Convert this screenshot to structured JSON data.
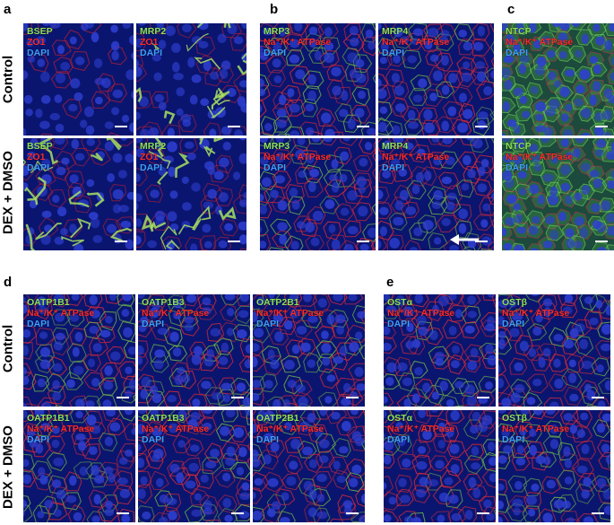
{
  "panels": {
    "a": "a",
    "b": "b",
    "c": "c",
    "d": "d",
    "e": "e"
  },
  "rows": {
    "control": "Control",
    "dex": "DEX + DMSO"
  },
  "tiles": [
    {
      "id": "a1",
      "lines": [
        {
          "t": "BSEP",
          "c": "g"
        },
        {
          "t": "ZO1",
          "c": "r"
        },
        {
          "t": "DAPI",
          "c": "b"
        }
      ],
      "style": "sparse"
    },
    {
      "id": "a2",
      "lines": [
        {
          "t": "MRP2",
          "c": "g"
        },
        {
          "t": "ZO1",
          "c": "r"
        },
        {
          "t": "DAPI",
          "c": "b"
        }
      ],
      "style": "canal"
    },
    {
      "id": "a3",
      "lines": [
        {
          "t": "BSEP",
          "c": "g"
        },
        {
          "t": "ZO1",
          "c": "r"
        },
        {
          "t": "DAPI",
          "c": "b"
        }
      ],
      "style": "canal"
    },
    {
      "id": "a4",
      "lines": [
        {
          "t": "MRP2",
          "c": "g"
        },
        {
          "t": "ZO1",
          "c": "r"
        },
        {
          "t": "DAPI",
          "c": "b"
        }
      ],
      "style": "canal"
    },
    {
      "id": "b1",
      "lines": [
        {
          "t": "MRP3",
          "c": "g"
        },
        {
          "t": "Na⁺/K⁺ ATPase",
          "c": "r"
        },
        {
          "t": "DAPI",
          "c": "b"
        }
      ],
      "style": "membrane"
    },
    {
      "id": "b2",
      "lines": [
        {
          "t": "MRP4",
          "c": "g"
        },
        {
          "t": "Na⁺/K⁺ ATPase",
          "c": "r"
        },
        {
          "t": "DAPI",
          "c": "b"
        }
      ],
      "style": "membrane"
    },
    {
      "id": "b3",
      "lines": [
        {
          "t": "MRP3",
          "c": "g"
        },
        {
          "t": "Na⁺/K⁺ ATPase",
          "c": "r"
        },
        {
          "t": "DAPI",
          "c": "b"
        }
      ],
      "style": "membrane"
    },
    {
      "id": "b4",
      "lines": [
        {
          "t": "MRP4",
          "c": "g"
        },
        {
          "t": "Na⁺/K⁺ ATPase",
          "c": "r"
        },
        {
          "t": "DAPI",
          "c": "b"
        }
      ],
      "style": "membrane"
    },
    {
      "id": "c1",
      "lines": [
        {
          "t": "NTCP",
          "c": "g"
        },
        {
          "t": "Na⁺/K⁺ ATPase",
          "c": "r"
        },
        {
          "t": "DAPI",
          "c": "b"
        }
      ],
      "style": "green"
    },
    {
      "id": "c2",
      "lines": [
        {
          "t": "NTCP",
          "c": "g"
        },
        {
          "t": "Na⁺/K⁺ ATPase",
          "c": "r"
        },
        {
          "t": "DAPI",
          "c": "b"
        }
      ],
      "style": "green"
    },
    {
      "id": "d1",
      "lines": [
        {
          "t": "OATP1B1",
          "c": "g"
        },
        {
          "t": "Na⁺/K⁺ ATPase",
          "c": "r"
        },
        {
          "t": "DAPI",
          "c": "b"
        }
      ],
      "style": "membrane"
    },
    {
      "id": "d2",
      "lines": [
        {
          "t": "OATP1B3",
          "c": "g"
        },
        {
          "t": "Na⁺/K⁺ ATPase",
          "c": "r"
        },
        {
          "t": "DAPI",
          "c": "b"
        }
      ],
      "style": "membrane"
    },
    {
      "id": "d3",
      "lines": [
        {
          "t": "OATP2B1",
          "c": "g"
        },
        {
          "t": "Na⁺/K⁺ ATPase",
          "c": "r"
        },
        {
          "t": "DAPI",
          "c": "b"
        }
      ],
      "style": "membrane"
    },
    {
      "id": "d4",
      "lines": [
        {
          "t": "OATP1B1",
          "c": "g"
        },
        {
          "t": "Na⁺/K⁺ ATPase",
          "c": "r"
        },
        {
          "t": "DAPI",
          "c": "b"
        }
      ],
      "style": "membrane"
    },
    {
      "id": "d5",
      "lines": [
        {
          "t": "OATP1B3",
          "c": "g"
        },
        {
          "t": "Na⁺/K⁺ ATPase",
          "c": "r"
        },
        {
          "t": "DAPI",
          "c": "b"
        }
      ],
      "style": "membrane"
    },
    {
      "id": "d6",
      "lines": [
        {
          "t": "OATP2B1",
          "c": "g"
        },
        {
          "t": "Na⁺/K⁺ ATPase",
          "c": "r"
        },
        {
          "t": "DAPI",
          "c": "b"
        }
      ],
      "style": "membrane"
    },
    {
      "id": "e1",
      "lines": [
        {
          "t": "OSTα",
          "c": "g"
        },
        {
          "t": "Na⁺/K⁺ ATPase",
          "c": "r"
        },
        {
          "t": "DAPI",
          "c": "b"
        }
      ],
      "style": "membrane"
    },
    {
      "id": "e2",
      "lines": [
        {
          "t": "OSTβ",
          "c": "g"
        },
        {
          "t": "Na⁺/K⁺ ATPase",
          "c": "r"
        },
        {
          "t": "DAPI",
          "c": "b"
        }
      ],
      "style": "membrane"
    },
    {
      "id": "e3",
      "lines": [
        {
          "t": "OSTα",
          "c": "g"
        },
        {
          "t": "Na⁺/K⁺ ATPase",
          "c": "r"
        },
        {
          "t": "DAPI",
          "c": "b"
        }
      ],
      "style": "membrane"
    },
    {
      "id": "e4",
      "lines": [
        {
          "t": "OSTβ",
          "c": "g"
        },
        {
          "t": "Na⁺/K⁺ ATPase",
          "c": "r"
        },
        {
          "t": "DAPI",
          "c": "b"
        }
      ],
      "style": "membrane"
    }
  ],
  "colors": {
    "green": "#8de05a",
    "red": "#ff2b2b",
    "blue": "#3ea0ff",
    "background": "#061066"
  }
}
